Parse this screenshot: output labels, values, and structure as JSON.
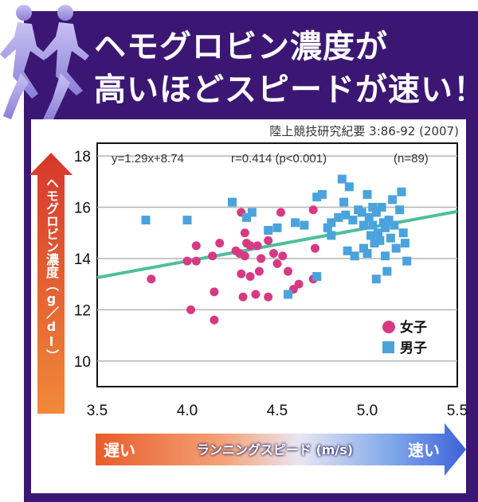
{
  "headline": {
    "line1": "ヘモグロビン濃度が",
    "line2": "高いほどスピードが速い！"
  },
  "source": "陸上競技研究紀要 3:86-92 (2007)",
  "y_axis_arrow_label": "ヘモグロビン濃度（g／dl）",
  "x_axis_bar": {
    "left_label": "遅い",
    "center_label": "ランニングスピード (m/s)",
    "right_label": "速い"
  },
  "stats": {
    "equation": "y=1.29x+8.74",
    "correlation": "r=0.414 (p<0.001)",
    "n": "(n=89)"
  },
  "colors": {
    "frame": "#3b1773",
    "women": "#d63a82",
    "men": "#4aa3dc",
    "regression": "#4dbf9a"
  },
  "icons": [
    "runner-silhouette-icon"
  ],
  "chart_data": {
    "type": "scatter",
    "xlim": [
      3.5,
      5.5
    ],
    "ylim": [
      9,
      18.5
    ],
    "xticks": [
      "3.5",
      "4.0",
      "4.5",
      "5.0",
      "5.5"
    ],
    "yticks": [
      "10",
      "12",
      "14",
      "16",
      "18"
    ],
    "xticks_values": [
      3.5,
      4.0,
      4.5,
      5.0,
      5.5
    ],
    "yticks_values": [
      10,
      12,
      14,
      16,
      18
    ],
    "grid": "horizontal",
    "legend_position": "bottom-right",
    "regression": {
      "slope": 1.29,
      "intercept": 8.74
    },
    "series": [
      {
        "name": "女子",
        "marker": "circle",
        "points": [
          [
            3.8,
            13.2
          ],
          [
            4.0,
            13.9
          ],
          [
            4.02,
            12.0
          ],
          [
            4.05,
            14.5
          ],
          [
            4.05,
            13.9
          ],
          [
            4.14,
            14.1
          ],
          [
            4.15,
            12.7
          ],
          [
            4.15,
            11.6
          ],
          [
            4.18,
            14.6
          ],
          [
            4.27,
            14.3
          ],
          [
            4.29,
            14.2
          ],
          [
            4.3,
            15.8
          ],
          [
            4.3,
            13.4
          ],
          [
            4.31,
            12.5
          ],
          [
            4.32,
            14.1
          ],
          [
            4.32,
            15.0
          ],
          [
            4.33,
            14.6
          ],
          [
            4.35,
            14.5
          ],
          [
            4.35,
            13.3
          ],
          [
            4.38,
            12.6
          ],
          [
            4.39,
            14.5
          ],
          [
            4.4,
            13.5
          ],
          [
            4.41,
            14.0
          ],
          [
            4.45,
            14.7
          ],
          [
            4.45,
            12.5
          ],
          [
            4.48,
            14.2
          ],
          [
            4.5,
            13.8
          ],
          [
            4.52,
            15.8
          ],
          [
            4.53,
            14.1
          ],
          [
            4.56,
            13.5
          ],
          [
            4.59,
            12.8
          ],
          [
            4.62,
            13.0
          ],
          [
            4.7,
            15.9
          ],
          [
            4.71,
            14.4
          ],
          [
            4.7,
            13.2
          ]
        ]
      },
      {
        "name": "男子",
        "marker": "square",
        "points": [
          [
            3.77,
            15.5
          ],
          [
            4.0,
            15.5
          ],
          [
            4.25,
            16.2
          ],
          [
            4.33,
            15.6
          ],
          [
            4.36,
            15.8
          ],
          [
            4.45,
            15.1
          ],
          [
            4.5,
            15.2
          ],
          [
            4.56,
            12.6
          ],
          [
            4.6,
            15.4
          ],
          [
            4.65,
            15.3
          ],
          [
            4.72,
            16.4
          ],
          [
            4.72,
            13.3
          ],
          [
            4.75,
            16.5
          ],
          [
            4.78,
            15.2
          ],
          [
            4.8,
            15.4
          ],
          [
            4.8,
            14.9
          ],
          [
            4.84,
            15.6
          ],
          [
            4.86,
            17.1
          ],
          [
            4.87,
            16.2
          ],
          [
            4.88,
            15.7
          ],
          [
            4.89,
            14.3
          ],
          [
            4.9,
            16.8
          ],
          [
            4.92,
            15.5
          ],
          [
            4.93,
            14.1
          ],
          [
            4.95,
            15.9
          ],
          [
            4.97,
            15.8
          ],
          [
            4.98,
            15.3
          ],
          [
            4.98,
            14.4
          ],
          [
            5.0,
            16.5
          ],
          [
            5.0,
            14.2
          ],
          [
            5.01,
            15.6
          ],
          [
            5.02,
            14.9
          ],
          [
            5.03,
            16.0
          ],
          [
            5.03,
            15.3
          ],
          [
            5.04,
            14.6
          ],
          [
            5.05,
            13.2
          ],
          [
            5.05,
            15.8
          ],
          [
            5.06,
            15.0
          ],
          [
            5.07,
            14.7
          ],
          [
            5.08,
            16.0
          ],
          [
            5.09,
            15.4
          ],
          [
            5.1,
            15.2
          ],
          [
            5.1,
            14.1
          ],
          [
            5.11,
            13.5
          ],
          [
            5.12,
            15.5
          ],
          [
            5.13,
            14.8
          ],
          [
            5.14,
            16.3
          ],
          [
            5.15,
            15.3
          ],
          [
            5.16,
            14.4
          ],
          [
            5.18,
            15.9
          ],
          [
            5.19,
            16.6
          ],
          [
            5.2,
            15.0
          ],
          [
            5.21,
            14.6
          ],
          [
            5.22,
            13.9
          ]
        ]
      }
    ]
  }
}
